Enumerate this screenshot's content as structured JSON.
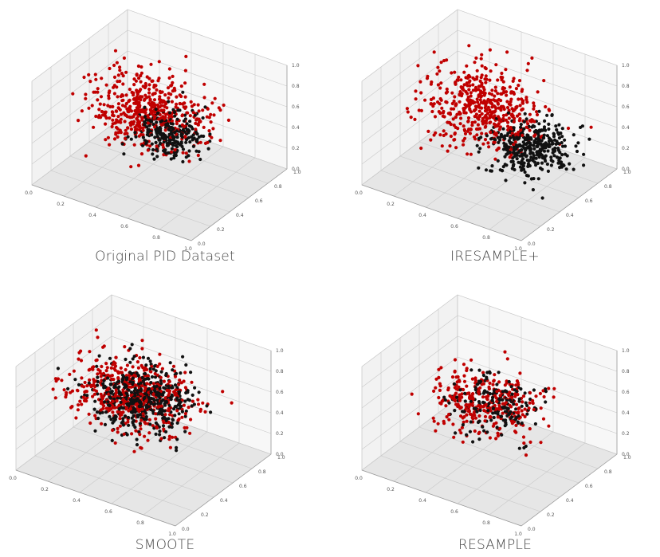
{
  "colors": {
    "class_red": "#c00000",
    "class_black": "#111111",
    "pane_left": "#f2f2f2",
    "pane_right": "#f7f7f7",
    "pane_floor": "#e6e6e6",
    "grid": "#c9c9c9"
  },
  "panels": [
    {
      "caption": "Original PID Dataset",
      "x_ticks": [
        "0.0",
        "0.2",
        "0.4",
        "0.6",
        "0.8",
        "1.0"
      ],
      "y_ticks": [
        "0.0",
        "0.2",
        "0.4",
        "0.6",
        "0.8",
        "1.0"
      ],
      "z_ticks": [
        "0.0",
        "0.2",
        "0.4",
        "0.6",
        "0.8",
        "1.0"
      ]
    },
    {
      "caption": "IRESAMPLE+",
      "x_ticks": [
        "0.0",
        "0.2",
        "0.4",
        "0.6",
        "0.8",
        "1.0"
      ],
      "y_ticks": [
        "0.0",
        "0.2",
        "0.4",
        "0.6",
        "0.8",
        "1.0"
      ],
      "z_ticks": [
        "0.0",
        "0.2",
        "0.4",
        "0.6",
        "0.8",
        "1.0"
      ]
    },
    {
      "caption": "SMOOTE",
      "x_ticks": [
        "0.0",
        "0.2",
        "0.4",
        "0.6",
        "0.8",
        "1.0"
      ],
      "y_ticks": [
        "0.0",
        "0.2",
        "0.4",
        "0.6",
        "0.8",
        "1.0"
      ],
      "z_ticks": [
        "0.0",
        "0.2",
        "0.4",
        "0.6",
        "0.8",
        "1.0"
      ]
    },
    {
      "caption": "RESAMPLE",
      "x_ticks": [
        "0.0",
        "0.2",
        "0.4",
        "0.6",
        "0.8",
        "1.0"
      ],
      "y_ticks": [
        "0.0",
        "0.2",
        "0.4",
        "0.6",
        "0.8",
        "1.0"
      ],
      "z_ticks": [
        "0.0",
        "0.2",
        "0.4",
        "0.6",
        "0.8",
        "1.0"
      ]
    }
  ],
  "chart_data": [
    {
      "type": "scatter",
      "title": "Original PID Dataset",
      "xlim": [
        0,
        1
      ],
      "ylim": [
        0,
        1
      ],
      "zlim": [
        0,
        1
      ],
      "grid": true,
      "series": [
        {
          "color": "#c00000",
          "count": 500,
          "center": [
            0.4,
            0.55,
            0.55
          ],
          "spread": [
            0.17,
            0.14,
            0.13
          ]
        },
        {
          "color": "#111111",
          "count": 250,
          "center": [
            0.55,
            0.5,
            0.45
          ],
          "spread": [
            0.09,
            0.09,
            0.09
          ]
        }
      ]
    },
    {
      "type": "scatter",
      "title": "IRESAMPLE+",
      "xlim": [
        0,
        1
      ],
      "ylim": [
        0,
        1
      ],
      "zlim": [
        0,
        1
      ],
      "grid": true,
      "series": [
        {
          "color": "#c00000",
          "count": 500,
          "center": [
            0.4,
            0.6,
            0.55
          ],
          "spread": [
            0.17,
            0.16,
            0.14
          ]
        },
        {
          "color": "#111111",
          "count": 380,
          "center": [
            0.78,
            0.48,
            0.45
          ],
          "spread": [
            0.1,
            0.12,
            0.11
          ]
        }
      ]
    },
    {
      "type": "scatter",
      "title": "SMOOTE",
      "xlim": [
        0,
        1
      ],
      "ylim": [
        0,
        1
      ],
      "zlim": [
        0,
        1
      ],
      "grid": true,
      "series": [
        {
          "color": "#c00000",
          "count": 500,
          "center": [
            0.4,
            0.55,
            0.55
          ],
          "spread": [
            0.17,
            0.14,
            0.13
          ]
        },
        {
          "color": "#111111",
          "count": 500,
          "center": [
            0.45,
            0.55,
            0.55
          ],
          "spread": [
            0.14,
            0.13,
            0.12
          ]
        }
      ]
    },
    {
      "type": "scatter",
      "title": "RESAMPLE",
      "xlim": [
        0,
        1
      ],
      "ylim": [
        0,
        1
      ],
      "zlim": [
        0,
        1
      ],
      "grid": true,
      "series": [
        {
          "color": "#c00000",
          "count": 330,
          "center": [
            0.48,
            0.55,
            0.52
          ],
          "spread": [
            0.15,
            0.12,
            0.12
          ]
        },
        {
          "color": "#111111",
          "count": 170,
          "center": [
            0.5,
            0.55,
            0.52
          ],
          "spread": [
            0.12,
            0.1,
            0.1
          ]
        }
      ]
    }
  ]
}
